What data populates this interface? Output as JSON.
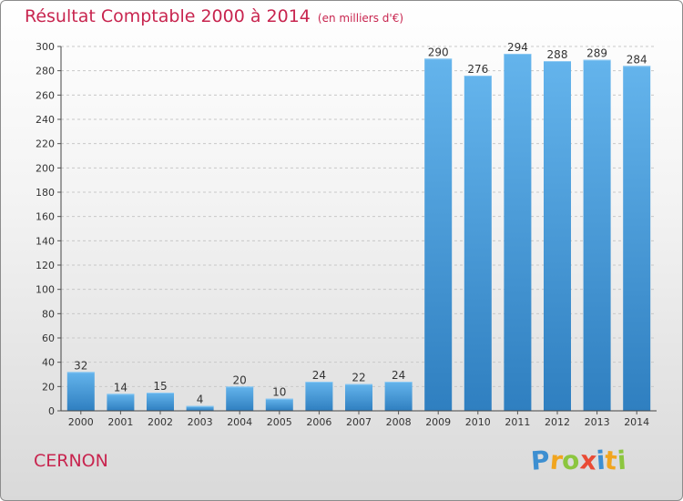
{
  "header": {
    "title": "Résultat Comptable 2000 à 2014",
    "unit": "(en milliers d'€)"
  },
  "footer": {
    "commune": "CERNON"
  },
  "logo": {
    "letters": [
      {
        "ch": "P",
        "color": "#3d8fd1"
      },
      {
        "ch": "r",
        "color": "#f1a51e"
      },
      {
        "ch": "o",
        "color": "#8cc63f"
      },
      {
        "ch": "x",
        "color": "#e94b35"
      },
      {
        "ch": "i",
        "color": "#3d8fd1"
      },
      {
        "ch": "t",
        "color": "#f1a51e"
      },
      {
        "ch": "i",
        "color": "#8cc63f"
      }
    ]
  },
  "colors": {
    "bar": "#4a9fdd",
    "bar_light": "#64b4ec",
    "bar_dark": "#2f7fc0",
    "accent": "#c8254f"
  },
  "chart_data": {
    "type": "bar",
    "categories": [
      "2000",
      "2001",
      "2002",
      "2003",
      "2004",
      "2005",
      "2006",
      "2007",
      "2008",
      "2009",
      "2010",
      "2011",
      "2012",
      "2013",
      "2014"
    ],
    "values": [
      32,
      14,
      15,
      4,
      20,
      10,
      24,
      22,
      24,
      290,
      276,
      294,
      288,
      289,
      284
    ],
    "ylim": [
      0,
      300
    ],
    "yticks": [
      0,
      20,
      40,
      60,
      80,
      100,
      120,
      140,
      160,
      180,
      200,
      220,
      240,
      260,
      280,
      300
    ],
    "grid": true
  }
}
